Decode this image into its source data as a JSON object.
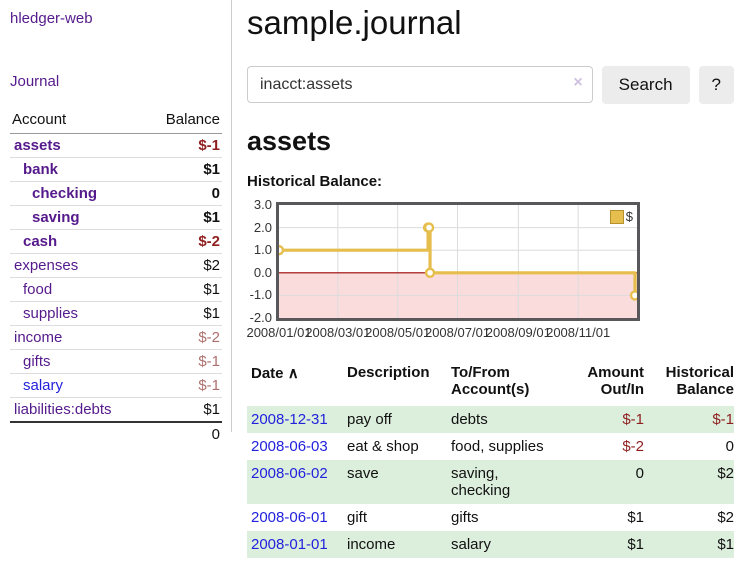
{
  "sidebar": {
    "app_title": "hledger-web",
    "nav": {
      "journal_label": "Journal"
    },
    "accounts_table": {
      "headers": {
        "account": "Account",
        "balance": "Balance"
      },
      "rows": [
        {
          "name": "assets",
          "depth": 1,
          "bold": true,
          "balance": "$-1",
          "balance_class": "neg-strong",
          "link_class": "purple"
        },
        {
          "name": "bank",
          "depth": 2,
          "bold": true,
          "balance": "$1",
          "balance_class": "strong",
          "link_class": "purple"
        },
        {
          "name": "checking",
          "depth": 3,
          "bold": true,
          "balance": "0",
          "balance_class": "strong",
          "link_class": "purple"
        },
        {
          "name": "saving",
          "depth": 3,
          "bold": true,
          "balance": "$1",
          "balance_class": "strong",
          "link_class": "purple"
        },
        {
          "name": "cash",
          "depth": 2,
          "bold": true,
          "balance": "$-2",
          "balance_class": "neg-strong",
          "link_class": "purple"
        },
        {
          "name": "expenses",
          "depth": 1,
          "bold": false,
          "balance": "$2",
          "balance_class": "",
          "link_class": "purple"
        },
        {
          "name": "food",
          "depth": 2,
          "bold": false,
          "balance": "$1",
          "balance_class": "",
          "link_class": "purple"
        },
        {
          "name": "supplies",
          "depth": 2,
          "bold": false,
          "balance": "$1",
          "balance_class": "",
          "link_class": "purple"
        },
        {
          "name": "income",
          "depth": 1,
          "bold": false,
          "balance": "$-2",
          "balance_class": "neg",
          "link_class": "purple"
        },
        {
          "name": "gifts",
          "depth": 2,
          "bold": false,
          "balance": "$-1",
          "balance_class": "neg",
          "link_class": "purple"
        },
        {
          "name": "salary",
          "depth": 2,
          "bold": false,
          "balance": "$-1",
          "balance_class": "neg",
          "link_class": "blue"
        },
        {
          "name": "liabilities:debts",
          "depth": 1,
          "bold": false,
          "balance": "$1",
          "balance_class": "",
          "link_class": "purple"
        }
      ],
      "total": "0"
    }
  },
  "main": {
    "title": "sample.journal",
    "search": {
      "value": "inacct:assets",
      "clear_icon": "×",
      "button_label": "Search",
      "help_label": "?"
    },
    "account_heading": "assets",
    "chart_heading": "Historical Balance:",
    "register": {
      "sort_icon": "∧",
      "headers": [
        "Date",
        "Description",
        "To/From Account(s)",
        "Amount Out/In",
        "Historical Balance"
      ],
      "rows": [
        {
          "date": "2008-12-31",
          "description": "pay off",
          "accounts": "debts",
          "amount": "$-1",
          "amount_neg": true,
          "balance": "$-1",
          "balance_neg": true,
          "stripe": true
        },
        {
          "date": "2008-06-03",
          "description": "eat & shop",
          "accounts": "food, supplies",
          "amount": "$-2",
          "amount_neg": true,
          "balance": "0",
          "balance_neg": false,
          "stripe": false
        },
        {
          "date": "2008-06-02",
          "description": "save",
          "accounts": "saving, checking",
          "amount": "0",
          "amount_neg": false,
          "balance": "$2",
          "balance_neg": false,
          "stripe": true
        },
        {
          "date": "2008-06-01",
          "description": "gift",
          "accounts": "gifts",
          "amount": "$1",
          "amount_neg": false,
          "balance": "$2",
          "balance_neg": false,
          "stripe": false
        },
        {
          "date": "2008-01-01",
          "description": "income",
          "accounts": "salary",
          "amount": "$1",
          "amount_neg": false,
          "balance": "$1",
          "balance_neg": false,
          "stripe": true
        }
      ]
    }
  },
  "chart_data": {
    "type": "line",
    "title": "Historical Balance:",
    "series": [
      {
        "name": "$",
        "step": true,
        "points": [
          [
            "2008-01-01",
            1
          ],
          [
            "2008-06-01",
            2
          ],
          [
            "2008-06-02",
            2
          ],
          [
            "2008-06-03",
            0
          ],
          [
            "2008-12-31",
            -1
          ]
        ]
      }
    ],
    "xlim": [
      "2008-01-01",
      "2008-12-31"
    ],
    "ylim": [
      -2,
      3
    ],
    "y_ticks": [
      "3.0",
      "2.0",
      "1.0",
      "0.0",
      "-1.0",
      "-2.0"
    ],
    "x_ticks": [
      {
        "label": "2008/01/01",
        "date": "2008-01-01"
      },
      {
        "label": "2008/03/01",
        "date": "2008-03-01"
      },
      {
        "label": "2008/05/01",
        "date": "2008-05-01"
      },
      {
        "label": "2008/07/01",
        "date": "2008-07-01"
      },
      {
        "label": "2008/09/01",
        "date": "2008-09-01"
      },
      {
        "label": "2008/11/01",
        "date": "2008-11-01"
      }
    ],
    "legend": {
      "label": "$",
      "position": "top-right"
    },
    "grid": true,
    "colors": {
      "line": "#e6be4d",
      "marker_fill": "#ffffff",
      "negative_region": "#fadcdc",
      "zero_line": "#9b0000",
      "grid": "#dcdcdc",
      "border": "#58585a"
    }
  },
  "colors": {
    "link_purple": "#551a8b",
    "link_blue": "#2222dd",
    "negative_strong": "#8f1f1f",
    "negative_muted": "#ae6f6f",
    "row_stripe_green": "#dceedc",
    "button_gray": "#ececec"
  }
}
